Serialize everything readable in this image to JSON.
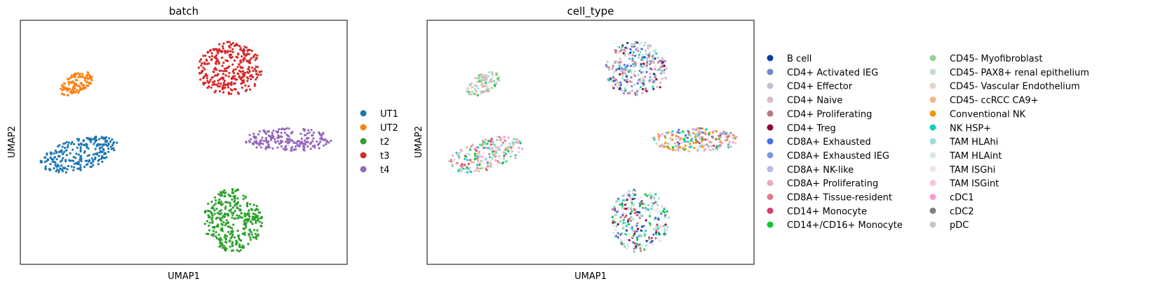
{
  "chart_data": [
    {
      "type": "scatter",
      "title": "batch",
      "xlabel": "UMAP1",
      "ylabel": "UMAP2",
      "xlim": [
        0,
        10
      ],
      "ylim": [
        0,
        10
      ],
      "grid": false,
      "legend_position": "right",
      "series": [
        {
          "name": "UT1",
          "color": "#1f77b4",
          "cluster": {
            "x": 1.8,
            "y": 4.5,
            "rx": 1.25,
            "ry": 0.62,
            "angle": 22,
            "n": 260
          }
        },
        {
          "name": "UT2",
          "color": "#ff7f0e",
          "cluster": {
            "x": 1.7,
            "y": 7.4,
            "rx": 0.62,
            "ry": 0.36,
            "angle": 42,
            "n": 120
          }
        },
        {
          "name": "t2",
          "color": "#2ca02c",
          "cluster": {
            "x": 6.5,
            "y": 1.8,
            "rx": 0.9,
            "ry": 1.3,
            "angle": 0,
            "n": 330
          }
        },
        {
          "name": "t3",
          "color": "#d62728",
          "cluster": {
            "x": 6.4,
            "y": 8.0,
            "rx": 0.98,
            "ry": 1.12,
            "angle": 0,
            "n": 320
          }
        },
        {
          "name": "t4",
          "color": "#9467bd",
          "cluster": {
            "x": 8.2,
            "y": 5.1,
            "rx": 1.35,
            "ry": 0.48,
            "angle": 0,
            "n": 200
          }
        }
      ]
    },
    {
      "type": "scatter",
      "title": "cell_type",
      "xlabel": "UMAP1",
      "ylabel": "UMAP2",
      "xlim": [
        0,
        10
      ],
      "ylim": [
        0,
        10
      ],
      "grid": false,
      "legend_position": "right",
      "clusters": [
        {
          "x": 1.8,
          "y": 4.5,
          "rx": 1.25,
          "ry": 0.62,
          "angle": 22,
          "n": 230,
          "mix": [
            13,
            12,
            9,
            11,
            16,
            18,
            19,
            21,
            23,
            22,
            10
          ]
        },
        {
          "x": 1.7,
          "y": 7.4,
          "rx": 0.62,
          "ry": 0.36,
          "angle": 42,
          "n": 110,
          "mix": [
            19,
            19,
            12,
            21,
            16,
            13,
            3,
            9
          ]
        },
        {
          "x": 6.5,
          "y": 1.8,
          "rx": 0.9,
          "ry": 1.3,
          "angle": 0,
          "n": 300,
          "mix": [
            20,
            20,
            21,
            21,
            19,
            19,
            18,
            0,
            6,
            11,
            12,
            13,
            4,
            5
          ]
        },
        {
          "x": 6.4,
          "y": 8.0,
          "rx": 0.98,
          "ry": 1.12,
          "angle": 0,
          "n": 300,
          "mix": [
            6,
            6,
            7,
            8,
            1,
            2,
            3,
            4,
            9,
            19,
            18,
            20,
            0,
            5,
            10,
            14
          ]
        },
        {
          "x": 8.2,
          "y": 5.1,
          "rx": 1.35,
          "ry": 0.48,
          "angle": 0,
          "n": 220,
          "mix": [
            17,
            17,
            17,
            16,
            18,
            6,
            7,
            9,
            13,
            20,
            22,
            23,
            10,
            8,
            11,
            12
          ]
        }
      ],
      "series": [
        {
          "name": "B cell",
          "color": "#023fa5"
        },
        {
          "name": "CD4+ Activated IEG",
          "color": "#7d87b9"
        },
        {
          "name": "CD4+ Effector",
          "color": "#bec1d4"
        },
        {
          "name": "CD4+ Naive",
          "color": "#d6bcc0"
        },
        {
          "name": "CD4+ Proliferating",
          "color": "#bb7784"
        },
        {
          "name": "CD4+ Treg",
          "color": "#8e063b"
        },
        {
          "name": "CD8A+ Exhausted",
          "color": "#4a6fe3"
        },
        {
          "name": "CD8A+ Exhausted IEG",
          "color": "#8595e1"
        },
        {
          "name": "CD8A+ NK-like",
          "color": "#b5bbe3"
        },
        {
          "name": "CD8A+ Proliferating",
          "color": "#e6afb9"
        },
        {
          "name": "CD8A+ Tissue-resident",
          "color": "#e07b91"
        },
        {
          "name": "CD14+ Monocyte",
          "color": "#d33f6a"
        },
        {
          "name": "CD14+/CD16+ Monocyte",
          "color": "#11c638"
        },
        {
          "name": "CD45- Myofibroblast",
          "color": "#8dd593"
        },
        {
          "name": "CD45- PAX8+ renal epithelium",
          "color": "#c6dec7"
        },
        {
          "name": "CD45- Vascular Endothelium",
          "color": "#ead3c6"
        },
        {
          "name": "CD45- ccRCC CA9+",
          "color": "#f0b98d"
        },
        {
          "name": "Conventional NK",
          "color": "#ef9708"
        },
        {
          "name": "NK HSP+",
          "color": "#0fcfc0"
        },
        {
          "name": "TAM HLAhi",
          "color": "#9cded6"
        },
        {
          "name": "TAM HLAint",
          "color": "#d5eae7"
        },
        {
          "name": "TAM ISGhi",
          "color": "#f3e1eb"
        },
        {
          "name": "TAM ISGint",
          "color": "#f6c4e1"
        },
        {
          "name": "cDC1",
          "color": "#f79cd4"
        },
        {
          "name": "cDC2",
          "color": "#7f7f7f"
        },
        {
          "name": "pDC",
          "color": "#c7c7c7"
        }
      ]
    }
  ]
}
